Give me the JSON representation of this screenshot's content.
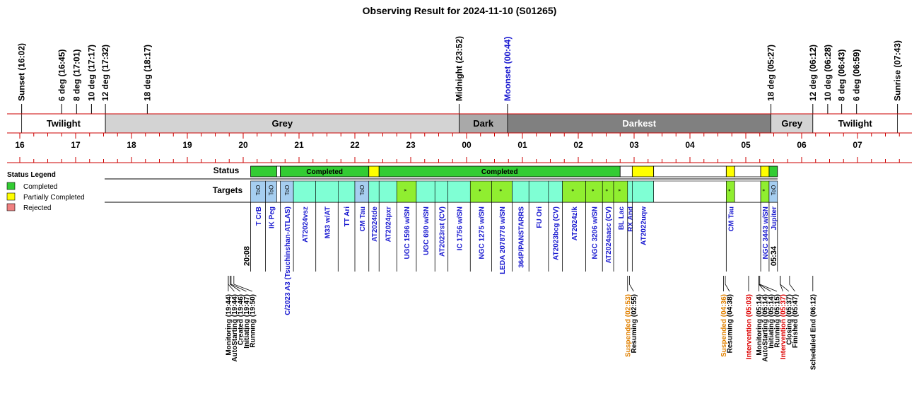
{
  "title": "Observing Result for 2024-11-10 (S01265)",
  "chart_data": {
    "type": "timeline",
    "time_axis": {
      "start": "16:00",
      "end": "07:45",
      "hour_ticks": [
        "16",
        "17",
        "18",
        "19",
        "20",
        "21",
        "22",
        "23",
        "00",
        "01",
        "02",
        "03",
        "04",
        "05",
        "06",
        "07"
      ]
    },
    "events": [
      {
        "label": "Sunset (16:02)",
        "time": "16:02",
        "color": "#000000"
      },
      {
        "label": "6 deg (16:45)",
        "time": "16:45",
        "color": "#000000"
      },
      {
        "label": "8 deg (17:01)",
        "time": "17:01",
        "color": "#000000"
      },
      {
        "label": "10 deg (17:17)",
        "time": "17:17",
        "color": "#000000"
      },
      {
        "label": "12 deg (17:32)",
        "time": "17:32",
        "color": "#000000"
      },
      {
        "label": "18 deg (18:17)",
        "time": "18:17",
        "color": "#000000"
      },
      {
        "label": "Midnight (23:52)",
        "time": "23:52",
        "color": "#000000"
      },
      {
        "label": "Moonset (00:44)",
        "time": "00:44",
        "color": "#1a1ad0"
      },
      {
        "label": "18 deg (05:27)",
        "time": "05:27",
        "color": "#000000"
      },
      {
        "label": "12 deg (06:12)",
        "time": "06:12",
        "color": "#000000"
      },
      {
        "label": "10 deg (06:28)",
        "time": "06:28",
        "color": "#000000"
      },
      {
        "label": "8 deg (06:43)",
        "time": "06:43",
        "color": "#000000"
      },
      {
        "label": "6 deg (06:59)",
        "time": "06:59",
        "color": "#000000"
      },
      {
        "label": "Sunrise (07:43)",
        "time": "07:43",
        "color": "#000000"
      }
    ],
    "sky_bands": [
      {
        "label": "Twilight",
        "start": "16:02",
        "end": "17:32",
        "color": "#ffffff",
        "text_color": "#000000"
      },
      {
        "label": "Grey",
        "start": "17:32",
        "end": "23:52",
        "color": "#d3d3d3",
        "text_color": "#000000"
      },
      {
        "label": "Dark",
        "start": "23:52",
        "end": "00:44",
        "color": "#a9a9a9",
        "text_color": "#000000"
      },
      {
        "label": "Darkest",
        "start": "00:44",
        "end": "05:27",
        "color": "#808080",
        "text_color": "#ffffff"
      },
      {
        "label": "Grey",
        "start": "05:27",
        "end": "06:12",
        "color": "#d3d3d3",
        "text_color": "#000000"
      },
      {
        "label": "Twilight",
        "start": "06:12",
        "end": "07:43",
        "color": "#ffffff",
        "text_color": "#000000"
      }
    ],
    "row_labels": {
      "status": "Status",
      "targets": "Targets"
    },
    "status_segments": [
      {
        "start": "20:08",
        "end": "20:36",
        "state": "Completed",
        "label": ""
      },
      {
        "start": "20:36",
        "end": "20:40",
        "state": "none",
        "label": ""
      },
      {
        "start": "20:40",
        "end": "22:15",
        "state": "Completed",
        "label": "Completed"
      },
      {
        "start": "22:15",
        "end": "22:26",
        "state": "Partially Completed",
        "label": ""
      },
      {
        "start": "22:26",
        "end": "02:45",
        "state": "Completed",
        "label": "Completed"
      },
      {
        "start": "02:45",
        "end": "02:58",
        "state": "none",
        "label": ""
      },
      {
        "start": "02:58",
        "end": "03:21",
        "state": "Partially Completed",
        "label": ""
      },
      {
        "start": "03:21",
        "end": "04:39",
        "state": "none",
        "label": ""
      },
      {
        "start": "04:39",
        "end": "04:48",
        "state": "Partially Completed",
        "label": ""
      },
      {
        "start": "04:48",
        "end": "05:16",
        "state": "none",
        "label": ""
      },
      {
        "start": "05:16",
        "end": "05:25",
        "state": "Partially Completed",
        "label": ""
      },
      {
        "start": "05:25",
        "end": "05:34",
        "state": "Completed",
        "label": ""
      }
    ],
    "target_blocks": [
      {
        "start": "20:08",
        "end": "20:24",
        "name": "T CrB",
        "tag": "ToO",
        "kind": "too"
      },
      {
        "start": "20:24",
        "end": "20:36",
        "name": "IK Peg",
        "tag": "ToO",
        "kind": "too"
      },
      {
        "start": "20:36",
        "end": "20:40",
        "name": "",
        "tag": "",
        "kind": "gap"
      },
      {
        "start": "20:40",
        "end": "20:54",
        "name": "C/2023 A3 (Tsuchinshan-ATLAS)",
        "tag": "ToO",
        "kind": "too"
      },
      {
        "start": "20:54",
        "end": "21:18",
        "name": "AT2024vsz",
        "tag": "",
        "kind": "normal"
      },
      {
        "start": "21:18",
        "end": "21:42",
        "name": "M33 w/AT",
        "tag": "",
        "kind": "normal"
      },
      {
        "start": "21:42",
        "end": "22:00",
        "name": "TT Ari",
        "tag": "",
        "kind": "normal"
      },
      {
        "start": "22:00",
        "end": "22:15",
        "name": "CM Tau",
        "tag": "ToO",
        "kind": "too"
      },
      {
        "start": "22:15",
        "end": "22:26",
        "name": "AT2024tde",
        "tag": "",
        "kind": "normal"
      },
      {
        "start": "22:26",
        "end": "22:45",
        "name": "AT2024pxr",
        "tag": "",
        "kind": "normal"
      },
      {
        "start": "22:45",
        "end": "23:06",
        "name": "UGC 1596 w/SN",
        "tag": "*",
        "kind": "star"
      },
      {
        "start": "23:06",
        "end": "23:26",
        "name": "UGC 690 w/SN",
        "tag": "",
        "kind": "normal"
      },
      {
        "start": "23:26",
        "end": "23:40",
        "name": "AT2023rst (CV)",
        "tag": "",
        "kind": "normal"
      },
      {
        "start": "23:40",
        "end": "00:04",
        "name": "IC 1756 w/SN",
        "tag": "",
        "kind": "normal"
      },
      {
        "start": "00:04",
        "end": "00:27",
        "name": "NGC 1275 w/SN",
        "tag": "*",
        "kind": "star"
      },
      {
        "start": "00:27",
        "end": "00:49",
        "name": "LEDA 2078778 w/SN",
        "tag": "*",
        "kind": "star"
      },
      {
        "start": "00:49",
        "end": "01:07",
        "name": "364P/PANSTARRS",
        "tag": "",
        "kind": "normal"
      },
      {
        "start": "01:07",
        "end": "01:28",
        "name": "FU Ori",
        "tag": "",
        "kind": "normal"
      },
      {
        "start": "01:28",
        "end": "01:43",
        "name": "AT2023bcg (CV)",
        "tag": "",
        "kind": "normal"
      },
      {
        "start": "01:43",
        "end": "02:08",
        "name": "AT2024zlk",
        "tag": "*",
        "kind": "star"
      },
      {
        "start": "02:08",
        "end": "02:26",
        "name": "NGC 3206 w/SN",
        "tag": "*",
        "kind": "star"
      },
      {
        "start": "02:26",
        "end": "02:38",
        "name": "AT2024aasc (CV)",
        "tag": "*",
        "kind": "star"
      },
      {
        "start": "02:38",
        "end": "02:53",
        "name": "BL Lac",
        "tag": "*",
        "kind": "star"
      },
      {
        "start": "02:53",
        "end": "02:58",
        "name": "RX And",
        "tag": "",
        "kind": "normal"
      },
      {
        "start": "02:58",
        "end": "03:21",
        "name": "AT2022uqw",
        "tag": "",
        "kind": "normal"
      },
      {
        "start": "03:21",
        "end": "04:39",
        "name": "",
        "tag": "",
        "kind": "gap"
      },
      {
        "start": "04:39",
        "end": "04:48",
        "name": "CM Tau",
        "tag": "*",
        "kind": "star"
      },
      {
        "start": "04:48",
        "end": "05:16",
        "name": "",
        "tag": "",
        "kind": "gap"
      },
      {
        "start": "05:16",
        "end": "05:25",
        "name": "NGC 3443 w/SN",
        "tag": "*",
        "kind": "star"
      },
      {
        "start": "05:25",
        "end": "05:34",
        "name": "Jupiter",
        "tag": "ToO",
        "kind": "too"
      }
    ],
    "time_markers": [
      {
        "label": "20:08",
        "time": "20:08"
      },
      {
        "label": "05:34",
        "time": "05:34"
      }
    ],
    "log_events": [
      {
        "label": "Monitoring (19:44)",
        "time": "19:44",
        "color": "#000000"
      },
      {
        "label": "AutoStarting (19:44)",
        "time": "19:44",
        "color": "#000000"
      },
      {
        "label": "Created (19:46)",
        "time": "19:46",
        "color": "#000000"
      },
      {
        "label": "Initiating (19:47)",
        "time": "19:47",
        "color": "#000000"
      },
      {
        "label": "Running (19:50)",
        "time": "19:50",
        "color": "#000000"
      },
      {
        "label": "Suspended (02:53)",
        "time": "02:53",
        "color": "#e08000"
      },
      {
        "label": "Resuming (02:55)",
        "time": "02:55",
        "color": "#000000"
      },
      {
        "label": "Suspended (04:36)",
        "time": "04:36",
        "color": "#e08000"
      },
      {
        "label": "Resuming (04:38)",
        "time": "04:38",
        "color": "#000000"
      },
      {
        "label": "Intervention (05:03)",
        "time": "05:03",
        "color": "#dd0000"
      },
      {
        "label": "Monitoring (05:14)",
        "time": "05:14",
        "color": "#000000"
      },
      {
        "label": "AutoStarting (05:14)",
        "time": "05:14",
        "color": "#000000"
      },
      {
        "label": "Initiating (05:14)",
        "time": "05:14",
        "color": "#000000"
      },
      {
        "label": "Running (05:15)",
        "time": "05:15",
        "color": "#000000"
      },
      {
        "label": "Intervention (05:37)",
        "time": "05:37",
        "color": "#dd0000"
      },
      {
        "label": "Closing (05:37)",
        "time": "05:37",
        "color": "#000000"
      },
      {
        "label": "Finished (05:47)",
        "time": "05:47",
        "color": "#000000"
      },
      {
        "label": "Scheduled End (06:12)",
        "time": "06:12",
        "color": "#000000"
      }
    ],
    "legend": {
      "title": "Status Legend",
      "items": [
        {
          "label": "Completed",
          "color": "#33cc33"
        },
        {
          "label": "Partially Completed",
          "color": "#ffff00"
        },
        {
          "label": "Rejected",
          "color": "#f08080"
        }
      ]
    },
    "colors": {
      "axis_line": "#cc0000",
      "completed": "#33cc33",
      "partial": "#ffff00",
      "too": "#a6cef0",
      "normal": "#7fffd4",
      "star": "#90ee30",
      "target_text": "#1a1ad0"
    }
  }
}
